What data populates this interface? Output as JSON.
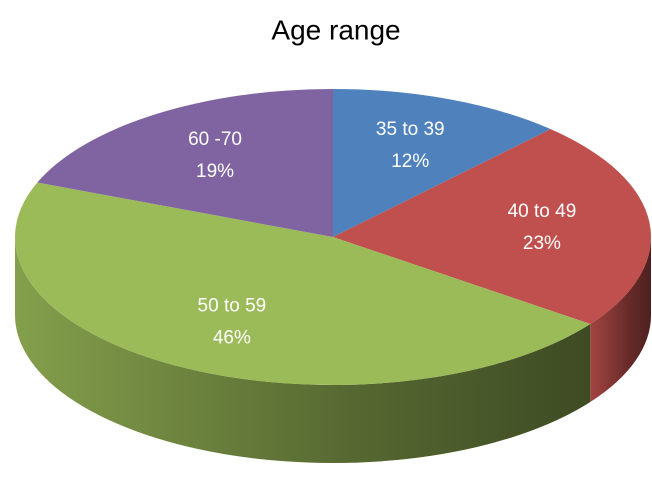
{
  "chart_data": {
    "type": "pie",
    "title": "Age range",
    "categories": [
      "35 to 39",
      "40 to 49",
      "50 to 59",
      "60 -70"
    ],
    "values": [
      12,
      23,
      46,
      19
    ],
    "value_labels": [
      "12%",
      "23%",
      "46%",
      "19%"
    ],
    "colors": [
      "#4f81bd",
      "#c0504d",
      "#9bbb59",
      "#8064a2"
    ]
  }
}
